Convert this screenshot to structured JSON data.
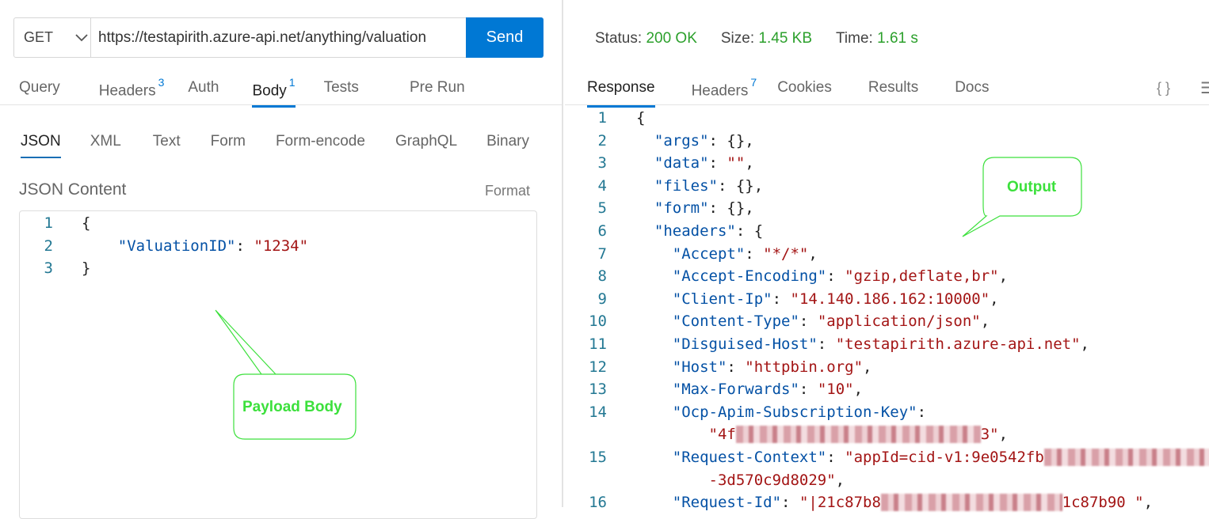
{
  "request": {
    "method": "GET",
    "url": "https://testapirith.azure-api.net/anything/valuation",
    "send_label": "Send",
    "tabs": [
      {
        "label": "Query"
      },
      {
        "label": "Headers",
        "badge": "3"
      },
      {
        "label": "Auth"
      },
      {
        "label": "Body",
        "badge": "1",
        "active": true
      },
      {
        "label": "Tests"
      },
      {
        "label": "Pre Run"
      }
    ],
    "body_tabs": [
      {
        "label": "JSON",
        "active": true
      },
      {
        "label": "XML"
      },
      {
        "label": "Text"
      },
      {
        "label": "Form"
      },
      {
        "label": "Form-encode"
      },
      {
        "label": "GraphQL"
      },
      {
        "label": "Binary"
      }
    ],
    "content_label": "JSON Content",
    "format_label": "Format",
    "lines": [
      {
        "n": "1",
        "parts": [
          {
            "t": "{",
            "c": "p"
          }
        ]
      },
      {
        "n": "2",
        "parts": [
          {
            "t": "    ",
            "c": "p"
          },
          {
            "t": "\"ValuationID\"",
            "c": "k"
          },
          {
            "t": ": ",
            "c": "p"
          },
          {
            "t": "\"1234\"",
            "c": "s"
          }
        ]
      },
      {
        "n": "3",
        "parts": [
          {
            "t": "}",
            "c": "p"
          }
        ]
      }
    ]
  },
  "response": {
    "status_label": "Status:",
    "status": "200 OK",
    "size_label": "Size:",
    "size": "1.45 KB",
    "time_label": "Time:",
    "time": "1.61 s",
    "tabs": [
      {
        "label": "Response",
        "active": true
      },
      {
        "label": "Headers",
        "badge": "7"
      },
      {
        "label": "Cookies"
      },
      {
        "label": "Results"
      },
      {
        "label": "Docs"
      }
    ],
    "braces_icon": "{ }",
    "menu_icon": "☰",
    "lines": [
      {
        "n": "1",
        "parts": [
          {
            "t": "{",
            "c": "p"
          }
        ]
      },
      {
        "n": "2",
        "parts": [
          {
            "t": "  ",
            "c": "p"
          },
          {
            "t": "\"args\"",
            "c": "k"
          },
          {
            "t": ": {},",
            "c": "p"
          }
        ]
      },
      {
        "n": "3",
        "parts": [
          {
            "t": "  ",
            "c": "p"
          },
          {
            "t": "\"data\"",
            "c": "k"
          },
          {
            "t": ": ",
            "c": "p"
          },
          {
            "t": "\"\"",
            "c": "s"
          },
          {
            "t": ",",
            "c": "p"
          }
        ]
      },
      {
        "n": "4",
        "parts": [
          {
            "t": "  ",
            "c": "p"
          },
          {
            "t": "\"files\"",
            "c": "k"
          },
          {
            "t": ": {},",
            "c": "p"
          }
        ]
      },
      {
        "n": "5",
        "parts": [
          {
            "t": "  ",
            "c": "p"
          },
          {
            "t": "\"form\"",
            "c": "k"
          },
          {
            "t": ": {},",
            "c": "p"
          }
        ]
      },
      {
        "n": "6",
        "parts": [
          {
            "t": "  ",
            "c": "p"
          },
          {
            "t": "\"headers\"",
            "c": "k"
          },
          {
            "t": ": {",
            "c": "p"
          }
        ]
      },
      {
        "n": "7",
        "parts": [
          {
            "t": "    ",
            "c": "p"
          },
          {
            "t": "\"Accept\"",
            "c": "k"
          },
          {
            "t": ": ",
            "c": "p"
          },
          {
            "t": "\"*/*\"",
            "c": "s"
          },
          {
            "t": ",",
            "c": "p"
          }
        ]
      },
      {
        "n": "8",
        "parts": [
          {
            "t": "    ",
            "c": "p"
          },
          {
            "t": "\"Accept-Encoding\"",
            "c": "k"
          },
          {
            "t": ": ",
            "c": "p"
          },
          {
            "t": "\"gzip,deflate,br\"",
            "c": "s"
          },
          {
            "t": ",",
            "c": "p"
          }
        ]
      },
      {
        "n": "9",
        "parts": [
          {
            "t": "    ",
            "c": "p"
          },
          {
            "t": "\"Client-Ip\"",
            "c": "k"
          },
          {
            "t": ": ",
            "c": "p"
          },
          {
            "t": "\"14.140.186.162:10000\"",
            "c": "s"
          },
          {
            "t": ",",
            "c": "p"
          }
        ]
      },
      {
        "n": "10",
        "parts": [
          {
            "t": "    ",
            "c": "p"
          },
          {
            "t": "\"Content-Type\"",
            "c": "k"
          },
          {
            "t": ": ",
            "c": "p"
          },
          {
            "t": "\"application/json\"",
            "c": "s"
          },
          {
            "t": ",",
            "c": "p"
          }
        ]
      },
      {
        "n": "11",
        "parts": [
          {
            "t": "    ",
            "c": "p"
          },
          {
            "t": "\"Disguised-Host\"",
            "c": "k"
          },
          {
            "t": ": ",
            "c": "p"
          },
          {
            "t": "\"testapirith.azure-api.net\"",
            "c": "s"
          },
          {
            "t": ",",
            "c": "p"
          }
        ]
      },
      {
        "n": "12",
        "parts": [
          {
            "t": "    ",
            "c": "p"
          },
          {
            "t": "\"Host\"",
            "c": "k"
          },
          {
            "t": ": ",
            "c": "p"
          },
          {
            "t": "\"httpbin.org\"",
            "c": "s"
          },
          {
            "t": ",",
            "c": "p"
          }
        ]
      },
      {
        "n": "13",
        "parts": [
          {
            "t": "    ",
            "c": "p"
          },
          {
            "t": "\"Max-Forwards\"",
            "c": "k"
          },
          {
            "t": ": ",
            "c": "p"
          },
          {
            "t": "\"10\"",
            "c": "s"
          },
          {
            "t": ",",
            "c": "p"
          }
        ]
      },
      {
        "n": "14",
        "parts": [
          {
            "t": "    ",
            "c": "p"
          },
          {
            "t": "\"Ocp-Apim-Subscription-Key\"",
            "c": "k"
          },
          {
            "t": ":",
            "c": "p"
          }
        ]
      },
      {
        "n": "",
        "parts": [
          {
            "t": "        ",
            "c": "p"
          },
          {
            "t": "\"4f",
            "c": "s"
          },
          {
            "t": "xxxxxxxxxxxxxxxxxxxxxxxxxxx",
            "c": "blur"
          },
          {
            "t": "3\"",
            "c": "s"
          },
          {
            "t": ",",
            "c": "p"
          }
        ]
      },
      {
        "n": "15",
        "parts": [
          {
            "t": "    ",
            "c": "p"
          },
          {
            "t": "\"Request-Context\"",
            "c": "k"
          },
          {
            "t": ": ",
            "c": "p"
          },
          {
            "t": "\"appId=cid-v1:9e0542fb",
            "c": "s"
          },
          {
            "t": "xxxxxxxxxxxxxxxxxxx",
            "c": "blur"
          }
        ]
      },
      {
        "n": "",
        "parts": [
          {
            "t": "        ",
            "c": "p"
          },
          {
            "t": "-3d570c9d8029\"",
            "c": "s"
          },
          {
            "t": ",",
            "c": "p"
          }
        ]
      },
      {
        "n": "16",
        "parts": [
          {
            "t": "    ",
            "c": "p"
          },
          {
            "t": "\"Request-Id\"",
            "c": "k"
          },
          {
            "t": ": ",
            "c": "p"
          },
          {
            "t": "\"|21c87b8",
            "c": "s"
          },
          {
            "t": "xxxxxxxxxxxxxxxxxxxx",
            "c": "blur"
          },
          {
            "t": "1c87b90 \"",
            "c": "s"
          },
          {
            "t": ",",
            "c": "p"
          }
        ]
      }
    ]
  },
  "annotations": {
    "payload": "Payload Body",
    "output": "Output",
    "color": "#3ce03c"
  }
}
